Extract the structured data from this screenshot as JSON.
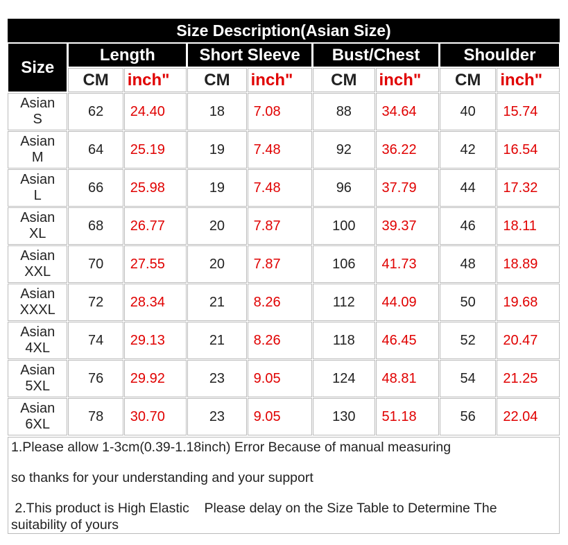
{
  "table": {
    "title": "Size Description(Asian Size)",
    "headers": [
      "Size",
      "Length",
      "Short Sleeve",
      "Bust/Chest",
      "Shoulder"
    ],
    "units": {
      "cm": "CM",
      "inch": "inch\""
    },
    "rows": [
      [
        "Asian\nS",
        "62",
        "24.40",
        "18",
        "7.08",
        "88",
        "34.64",
        "40",
        "15.74"
      ],
      [
        "Asian\nM",
        "64",
        "25.19",
        "19",
        "7.48",
        "92",
        "36.22",
        "42",
        "16.54"
      ],
      [
        "Asian\nL",
        "66",
        "25.98",
        "19",
        "7.48",
        "96",
        "37.79",
        "44",
        "17.32"
      ],
      [
        "Asian\nXL",
        "68",
        "26.77",
        "20",
        "7.87",
        "100",
        "39.37",
        "46",
        "18.11"
      ],
      [
        "Asian\nXXL",
        "70",
        "27.55",
        "20",
        "7.87",
        "106",
        "41.73",
        "48",
        "18.89"
      ],
      [
        "Asian\nXXXL",
        "72",
        "28.34",
        "21",
        "8.26",
        "112",
        "44.09",
        "50",
        "19.68"
      ],
      [
        "Asian\n4XL",
        "74",
        "29.13",
        "21",
        "8.26",
        "118",
        "46.45",
        "52",
        "20.47"
      ],
      [
        "Asian\n5XL",
        "76",
        "29.92",
        "23",
        "9.05",
        "124",
        "48.81",
        "54",
        "21.25"
      ],
      [
        "Asian\n6XL",
        "78",
        "30.70",
        "23",
        "9.05",
        "130",
        "51.18",
        "56",
        "22.04"
      ]
    ]
  },
  "notes": [
    "1.Please allow 1-3cm(0.39-1.18inch) Error Because of manual measuring",
    "so thanks for your understanding and your support",
    " 2.This product is High Elastic    Please delay on the Size Table to Determine The suitability of yours"
  ]
}
